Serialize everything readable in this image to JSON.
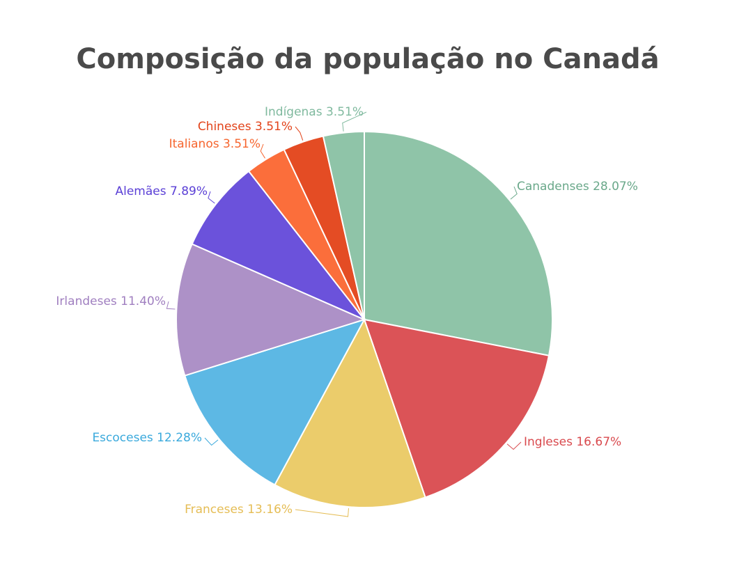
{
  "chart_data": {
    "type": "pie",
    "title": "Composição da população no Canadá",
    "slices": [
      {
        "label": "Canadenses 28.07%",
        "value": 28.07,
        "color": "#8fc4a8",
        "text_color": "#6aa88a"
      },
      {
        "label": "Ingleses 16.67%",
        "value": 16.67,
        "color": "#db5357",
        "text_color": "#d94a4e"
      },
      {
        "label": "Franceses 13.16%",
        "value": 13.16,
        "color": "#ebcc6b",
        "text_color": "#e5bd55"
      },
      {
        "label": "Escoceses 12.28%",
        "value": 12.28,
        "color": "#5db8e4",
        "text_color": "#3aa9dc"
      },
      {
        "label": "Irlandeses 11.40%",
        "value": 11.4,
        "color": "#ad91c7",
        "text_color": "#a07fc0"
      },
      {
        "label": "Alemães 7.89%",
        "value": 7.89,
        "color": "#6b52db",
        "text_color": "#5a3fd6"
      },
      {
        "label": "Italianos 3.51%",
        "value": 3.51,
        "color": "#fb6e3b",
        "text_color": "#f6652e"
      },
      {
        "label": "Chineses 3.51%",
        "value": 3.51,
        "color": "#e44c24",
        "text_color": "#e2431a"
      },
      {
        "label": "Indígenas 3.51%",
        "value": 3.51,
        "color": "#8fc4a8",
        "text_color": "#7fb99e"
      }
    ]
  }
}
